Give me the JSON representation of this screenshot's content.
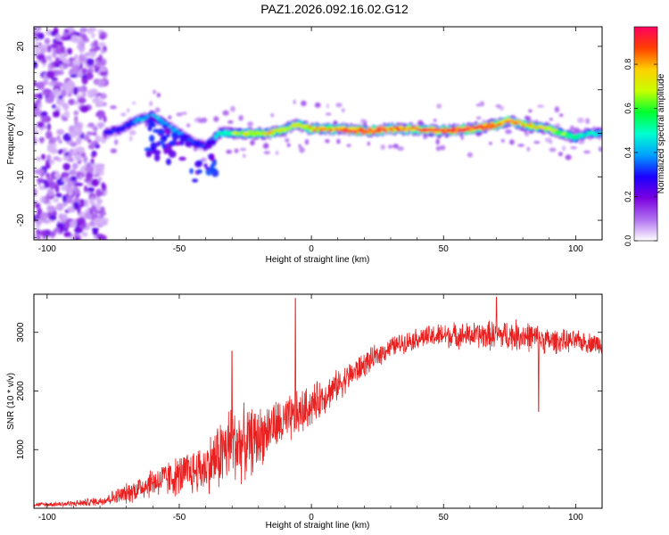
{
  "figure": {
    "title": "PAZ1.2026.092.16.02.G12"
  },
  "colors": {
    "snr_line": "#e82020",
    "axis": "#000000",
    "cmap": [
      "#ffffff",
      "#7a00e0",
      "#1a00ff",
      "#00a0ff",
      "#00ffd0",
      "#00ff30",
      "#c8ff00",
      "#ffd000",
      "#ff4000",
      "#ff0060"
    ]
  },
  "chart_data": [
    {
      "type": "heatmap",
      "name": "spectrogram",
      "xlabel": "Height of straight line (km)",
      "ylabel": "Frequency (Hz)",
      "xlim": [
        -105,
        110
      ],
      "ylim": [
        -24.5,
        24.5
      ],
      "xticks": [
        -100,
        -50,
        0,
        50,
        100
      ],
      "yticks": [
        -20,
        -10,
        0,
        10,
        20
      ],
      "colorbar": {
        "label": "Normalized spectral amplitude",
        "range": [
          0,
          0.97
        ],
        "ticks": [
          0.0,
          0.2,
          0.4,
          0.6,
          0.8
        ]
      },
      "ridge": {
        "x": [
          -78,
          -72,
          -66,
          -60,
          -55,
          -50,
          -45,
          -40,
          -35,
          -30,
          -25,
          -20,
          -15,
          -10,
          -5,
          0,
          10,
          20,
          30,
          40,
          50,
          60,
          70,
          75,
          80,
          90,
          100,
          105,
          110
        ],
        "frequency": [
          0,
          1,
          3,
          4,
          2,
          0,
          -2,
          -3,
          0,
          0,
          0,
          0,
          0,
          1,
          2,
          1,
          1,
          0.5,
          1,
          1,
          0.5,
          1,
          2,
          3,
          2,
          1,
          -1,
          0,
          0
        ],
        "amplitude": [
          0.3,
          0.3,
          0.4,
          0.45,
          0.4,
          0.4,
          0.35,
          0.3,
          0.5,
          0.6,
          0.75,
          0.7,
          0.8,
          0.7,
          0.75,
          0.8,
          0.85,
          0.95,
          0.9,
          0.9,
          0.95,
          0.95,
          0.9,
          0.85,
          0.8,
          0.7,
          0.55,
          0.5,
          0.45
        ]
      },
      "noise_region": {
        "x": [
          -105,
          -78
        ],
        "frequency": [
          -24.5,
          24.5
        ],
        "amplitude": [
          0.05,
          0.25
        ]
      }
    },
    {
      "type": "line",
      "name": "snr",
      "xlabel": "Height of straight line (km)",
      "ylabel": "SNR (10 * v/v)",
      "xlim": [
        -105,
        110
      ],
      "ylim": [
        0,
        3650
      ],
      "xticks": [
        -100,
        -50,
        0,
        50,
        100
      ],
      "yticks": [
        1000,
        2000,
        3000
      ],
      "envelope": {
        "x": [
          -105,
          -90,
          -80,
          -70,
          -60,
          -50,
          -40,
          -35,
          -30,
          -25,
          -20,
          -15,
          -10,
          -5,
          0,
          10,
          20,
          30,
          40,
          50,
          60,
          70,
          80,
          90,
          100,
          110
        ],
        "mean": [
          60,
          80,
          120,
          250,
          450,
          550,
          700,
          900,
          1100,
          1100,
          1200,
          1400,
          1450,
          1600,
          1750,
          2100,
          2450,
          2750,
          2900,
          2950,
          2950,
          2950,
          2950,
          2850,
          2850,
          2800
        ],
        "spread": [
          40,
          60,
          90,
          200,
          300,
          400,
          500,
          700,
          800,
          700,
          600,
          500,
          500,
          450,
          400,
          300,
          250,
          200,
          200,
          250,
          250,
          300,
          300,
          250,
          200,
          200
        ]
      },
      "spikes": [
        {
          "x": -30,
          "y": 2680
        },
        {
          "x": -6,
          "y": 3580
        },
        {
          "x": 70,
          "y": 3600
        },
        {
          "x": 86,
          "y": 1650
        }
      ]
    }
  ]
}
